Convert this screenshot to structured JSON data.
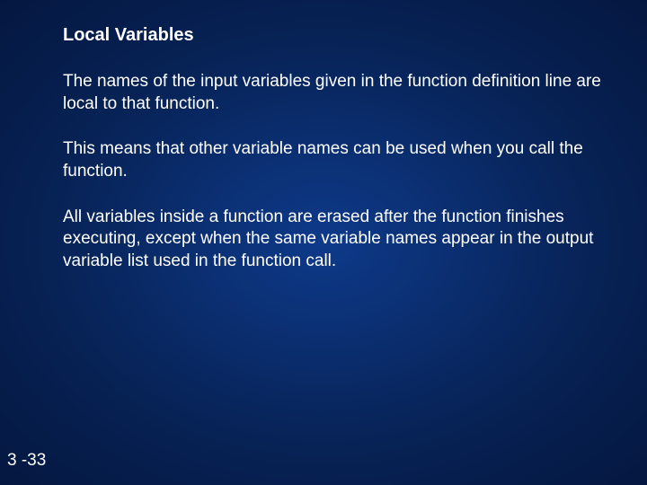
{
  "slide": {
    "title": "Local Variables",
    "paragraphs": [
      "The names of the input variables given in the function definition line are local to that function.",
      "This means that other variable names can be used when you call the function.",
      "All variables inside a function are erased after the function finishes executing, except when the same variable names appear in the output variable list used in the function call."
    ],
    "page_number": "3 -33",
    "background_gradient": {
      "center": "#0e3a8a",
      "mid": "#072255",
      "edge": "#041740"
    },
    "text_color": "#ffffff",
    "title_fontsize": 20,
    "body_fontsize": 19
  }
}
